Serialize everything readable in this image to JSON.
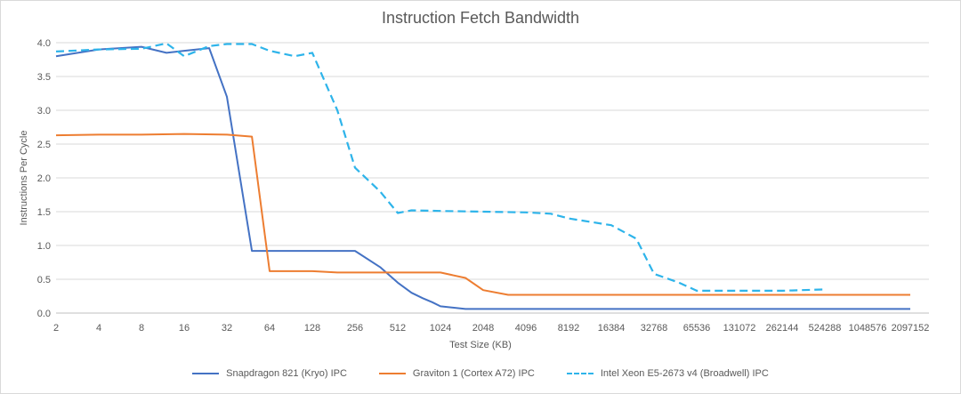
{
  "chart_data": {
    "type": "line",
    "title": "Instruction Fetch Bandwidth",
    "xlabel": "Test Size (KB)",
    "ylabel": "Instructions Per Cycle",
    "x_scale": "log2",
    "ylim": [
      0,
      4.0
    ],
    "y_ticks": [
      "0.0",
      "0.5",
      "1.0",
      "1.5",
      "2.0",
      "2.5",
      "3.0",
      "3.5",
      "4.0"
    ],
    "x_ticks": [
      "2",
      "4",
      "8",
      "16",
      "32",
      "64",
      "128",
      "256",
      "512",
      "1024",
      "2048",
      "4096",
      "8192",
      "16384",
      "32768",
      "65536",
      "131072",
      "262144",
      "524288",
      "1048576",
      "2097152"
    ],
    "grid": "horizontal",
    "legend_position": "bottom",
    "series": [
      {
        "name": "Snapdragon 821 (Kryo) IPC",
        "color": "#4472c4",
        "dash": "solid",
        "points": [
          [
            2,
            3.8
          ],
          [
            4,
            3.9
          ],
          [
            8,
            3.94
          ],
          [
            12,
            3.85
          ],
          [
            16,
            3.88
          ],
          [
            24,
            3.92
          ],
          [
            32,
            3.2
          ],
          [
            48,
            0.92
          ],
          [
            64,
            0.92
          ],
          [
            128,
            0.92
          ],
          [
            256,
            0.92
          ],
          [
            384,
            0.68
          ],
          [
            512,
            0.45
          ],
          [
            640,
            0.3
          ],
          [
            768,
            0.22
          ],
          [
            896,
            0.16
          ],
          [
            1024,
            0.1
          ],
          [
            1536,
            0.06
          ],
          [
            2048,
            0.06
          ],
          [
            2097152,
            0.06
          ]
        ]
      },
      {
        "name": "Graviton 1 (Cortex A72) IPC",
        "color": "#ed7d31",
        "dash": "solid",
        "points": [
          [
            2,
            2.63
          ],
          [
            4,
            2.64
          ],
          [
            8,
            2.64
          ],
          [
            16,
            2.65
          ],
          [
            32,
            2.64
          ],
          [
            48,
            2.61
          ],
          [
            64,
            0.62
          ],
          [
            128,
            0.62
          ],
          [
            192,
            0.6
          ],
          [
            256,
            0.6
          ],
          [
            512,
            0.6
          ],
          [
            1024,
            0.6
          ],
          [
            1536,
            0.52
          ],
          [
            2048,
            0.34
          ],
          [
            3072,
            0.27
          ],
          [
            4096,
            0.27
          ],
          [
            2097152,
            0.27
          ]
        ]
      },
      {
        "name": "Intel Xeon E5-2673 v4 (Broadwell) IPC",
        "color": "#2eb4ea",
        "dash": "dashed",
        "points": [
          [
            2,
            3.87
          ],
          [
            4,
            3.9
          ],
          [
            8,
            3.91
          ],
          [
            12,
            3.99
          ],
          [
            16,
            3.8
          ],
          [
            24,
            3.95
          ],
          [
            32,
            3.98
          ],
          [
            48,
            3.98
          ],
          [
            64,
            3.88
          ],
          [
            96,
            3.8
          ],
          [
            128,
            3.85
          ],
          [
            192,
            3.0
          ],
          [
            256,
            2.15
          ],
          [
            384,
            1.8
          ],
          [
            512,
            1.48
          ],
          [
            640,
            1.52
          ],
          [
            1024,
            1.51
          ],
          [
            2048,
            1.5
          ],
          [
            4096,
            1.49
          ],
          [
            6144,
            1.47
          ],
          [
            8192,
            1.4
          ],
          [
            16384,
            1.3
          ],
          [
            24576,
            1.1
          ],
          [
            32768,
            0.58
          ],
          [
            49152,
            0.45
          ],
          [
            65536,
            0.33
          ],
          [
            131072,
            0.33
          ],
          [
            262144,
            0.33
          ],
          [
            524288,
            0.35
          ]
        ]
      }
    ]
  }
}
